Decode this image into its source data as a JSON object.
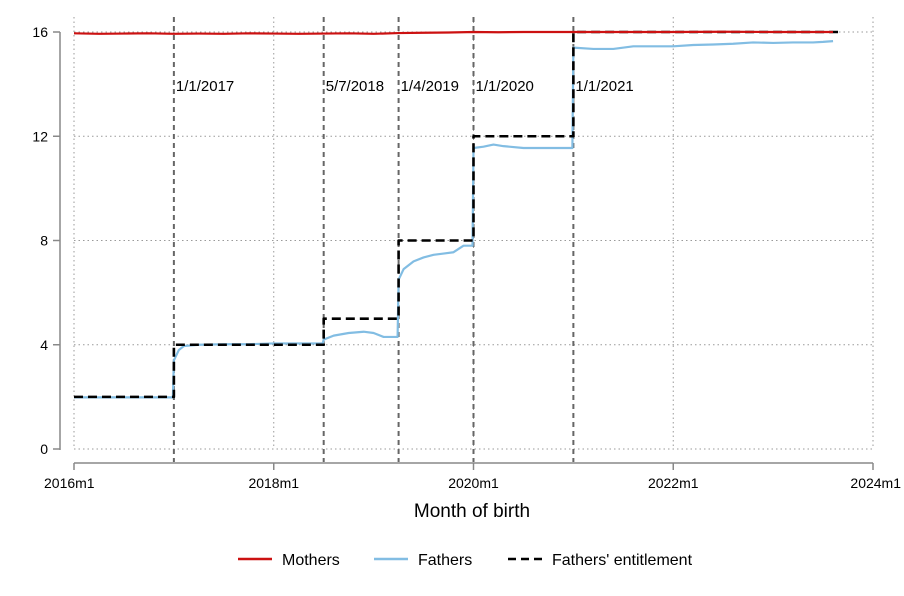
{
  "chart_data": {
    "type": "line",
    "title": "",
    "xlabel": "Month of birth",
    "ylabel": "",
    "xlim": [
      2016.0,
      2024.0
    ],
    "ylim": [
      0,
      16
    ],
    "x_ticks": [
      {
        "value": 2016,
        "label": "2016m1"
      },
      {
        "value": 2018,
        "label": "2018m1"
      },
      {
        "value": 2020,
        "label": "2020m1"
      },
      {
        "value": 2022,
        "label": "2022m1"
      },
      {
        "value": 2024,
        "label": "2024m1"
      }
    ],
    "y_ticks": [
      {
        "value": 0,
        "label": "0"
      },
      {
        "value": 4,
        "label": "4"
      },
      {
        "value": 8,
        "label": "8"
      },
      {
        "value": 12,
        "label": "12"
      },
      {
        "value": 16,
        "label": "16"
      }
    ],
    "grid": true,
    "legend_position": "bottom",
    "reform_lines": [
      {
        "x": 2017.0,
        "label": "1/1/2017"
      },
      {
        "x": 2018.5,
        "label": "5/7/2018"
      },
      {
        "x": 2019.25,
        "label": "1/4/2019"
      },
      {
        "x": 2020.0,
        "label": "1/1/2020"
      },
      {
        "x": 2021.0,
        "label": "1/1/2021"
      }
    ],
    "series": [
      {
        "name": "Mothers",
        "style": "solid",
        "color": "#cc1111",
        "points": [
          [
            2016.0,
            15.95
          ],
          [
            2016.25,
            15.93
          ],
          [
            2016.5,
            15.94
          ],
          [
            2016.75,
            15.95
          ],
          [
            2017.0,
            15.93
          ],
          [
            2017.25,
            15.94
          ],
          [
            2017.5,
            15.93
          ],
          [
            2017.75,
            15.95
          ],
          [
            2018.0,
            15.94
          ],
          [
            2018.25,
            15.93
          ],
          [
            2018.5,
            15.94
          ],
          [
            2018.75,
            15.95
          ],
          [
            2019.0,
            15.93
          ],
          [
            2019.25,
            15.96
          ],
          [
            2019.5,
            15.97
          ],
          [
            2019.75,
            15.98
          ],
          [
            2020.0,
            16.0
          ],
          [
            2020.25,
            15.99
          ],
          [
            2020.5,
            16.0
          ],
          [
            2020.75,
            16.0
          ],
          [
            2021.0,
            16.0
          ],
          [
            2021.5,
            16.0
          ],
          [
            2022.0,
            16.0
          ],
          [
            2022.5,
            16.01
          ],
          [
            2023.0,
            16.0
          ],
          [
            2023.6,
            16.0
          ]
        ]
      },
      {
        "name": "Fathers",
        "style": "solid",
        "color": "#82bde3",
        "points": [
          [
            2016.0,
            1.98
          ],
          [
            2016.25,
            1.98
          ],
          [
            2016.5,
            1.98
          ],
          [
            2016.75,
            1.98
          ],
          [
            2016.99,
            1.98
          ],
          [
            2017.0,
            3.4
          ],
          [
            2017.05,
            3.8
          ],
          [
            2017.1,
            3.95
          ],
          [
            2017.25,
            4.0
          ],
          [
            2017.5,
            4.02
          ],
          [
            2017.75,
            4.02
          ],
          [
            2018.0,
            4.05
          ],
          [
            2018.25,
            4.05
          ],
          [
            2018.49,
            4.05
          ],
          [
            2018.5,
            4.2
          ],
          [
            2018.6,
            4.35
          ],
          [
            2018.75,
            4.45
          ],
          [
            2018.9,
            4.5
          ],
          [
            2019.0,
            4.45
          ],
          [
            2019.1,
            4.3
          ],
          [
            2019.24,
            4.3
          ],
          [
            2019.25,
            6.5
          ],
          [
            2019.3,
            6.9
          ],
          [
            2019.4,
            7.2
          ],
          [
            2019.5,
            7.35
          ],
          [
            2019.6,
            7.45
          ],
          [
            2019.7,
            7.5
          ],
          [
            2019.8,
            7.55
          ],
          [
            2019.9,
            7.8
          ],
          [
            2019.99,
            7.8
          ],
          [
            2020.0,
            11.55
          ],
          [
            2020.1,
            11.6
          ],
          [
            2020.2,
            11.68
          ],
          [
            2020.3,
            11.62
          ],
          [
            2020.5,
            11.55
          ],
          [
            2020.7,
            11.55
          ],
          [
            2020.99,
            11.55
          ],
          [
            2021.0,
            15.4
          ],
          [
            2021.2,
            15.35
          ],
          [
            2021.4,
            15.35
          ],
          [
            2021.6,
            15.45
          ],
          [
            2021.8,
            15.45
          ],
          [
            2022.0,
            15.45
          ],
          [
            2022.2,
            15.5
          ],
          [
            2022.4,
            15.52
          ],
          [
            2022.6,
            15.55
          ],
          [
            2022.8,
            15.6
          ],
          [
            2023.0,
            15.58
          ],
          [
            2023.2,
            15.6
          ],
          [
            2023.4,
            15.6
          ],
          [
            2023.5,
            15.62
          ],
          [
            2023.6,
            15.65
          ]
        ]
      },
      {
        "name": "Fathers' entitlement",
        "style": "dashed",
        "color": "#000000",
        "points": [
          [
            2016.0,
            2
          ],
          [
            2017.0,
            2
          ],
          [
            2017.0,
            4
          ],
          [
            2018.5,
            4
          ],
          [
            2018.5,
            5
          ],
          [
            2019.25,
            5
          ],
          [
            2019.25,
            8
          ],
          [
            2020.0,
            8
          ],
          [
            2020.0,
            12
          ],
          [
            2021.0,
            12
          ],
          [
            2021.0,
            16
          ],
          [
            2023.65,
            16
          ]
        ]
      }
    ]
  }
}
